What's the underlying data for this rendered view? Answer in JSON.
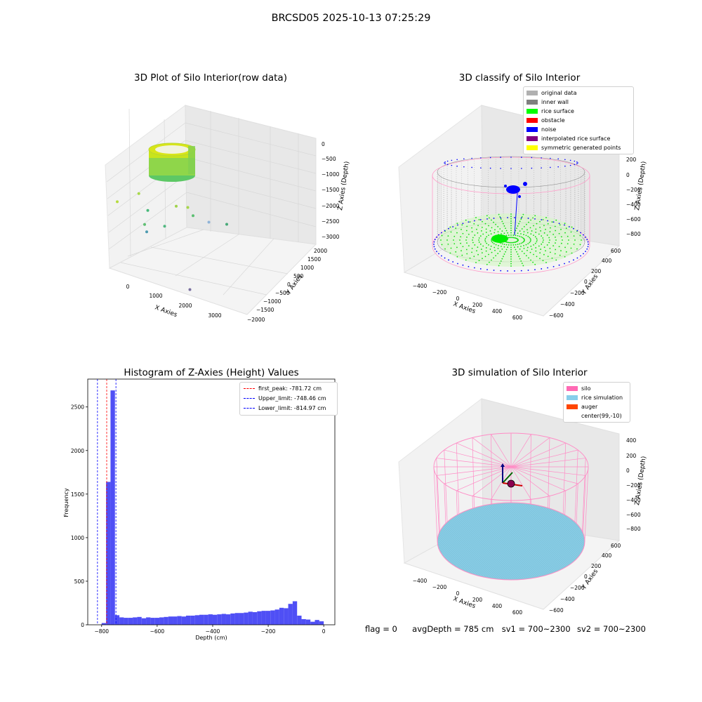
{
  "page": {
    "suptitle": "BRCSD05 2025-10-13 07:25:29"
  },
  "footer": {
    "flag": "flag = 0",
    "avgdepth": "avgDepth = 785 cm",
    "sv1": "sv1 = 700~2300",
    "sv2": "sv2 = 700~2300"
  },
  "chart_data": [
    {
      "type": "scatter",
      "title": "3D Plot of Silo Interior(row data)",
      "xlabel": "X Axies",
      "ylabel": "Y Axies",
      "zlabel": "Z Axies (Depth)",
      "xticks": [
        "0",
        "1000",
        "2000",
        "3000"
      ],
      "yticks": [
        "2000",
        "1500",
        "1000",
        "500",
        "0",
        "−500",
        "−1000",
        "−1500",
        "−2000"
      ],
      "zticks": [
        "0",
        "−500",
        "−1000",
        "−1500",
        "−2000",
        "−2500",
        "−3000"
      ],
      "points": [
        {
          "x": 150,
          "y": 200,
          "z": -1000,
          "c": "#a8d94a"
        },
        {
          "x": -600,
          "y": 300,
          "z": -1500,
          "c": "#b5db3e"
        },
        {
          "x": 500,
          "y": 100,
          "z": -1400,
          "c": "#47b97a"
        },
        {
          "x": 600,
          "y": -200,
          "z": -1700,
          "c": "#5fbf72"
        },
        {
          "x": 800,
          "y": -400,
          "z": -1800,
          "c": "#4d9bb0"
        },
        {
          "x": 1200,
          "y": 400,
          "z": -1200,
          "c": "#9fd34a"
        },
        {
          "x": 1500,
          "y": 500,
          "z": -1200,
          "c": "#a6d64a"
        },
        {
          "x": 1800,
          "y": 300,
          "z": -1300,
          "c": "#5cbf72"
        },
        {
          "x": 1100,
          "y": 0,
          "z": -1700,
          "c": "#50b780"
        },
        {
          "x": 2500,
          "y": 0,
          "z": -1200,
          "c": "#8fb3d8"
        },
        {
          "x": 3200,
          "y": -200,
          "z": -1000,
          "c": "#48a978"
        },
        {
          "x": 2700,
          "y": -1200,
          "z": -2800,
          "c": "#7a6fa0"
        }
      ]
    },
    {
      "type": "scatter",
      "title": "3D classify of Silo Interior",
      "xlabel": "X Axies",
      "ylabel": "Y Axies",
      "zlabel": "Z Axies (Depth)",
      "xticks": [
        "−400",
        "−200",
        "0",
        "200",
        "400",
        "600"
      ],
      "yticks": [
        "600",
        "400",
        "200",
        "0",
        "−200",
        "−400",
        "−600"
      ],
      "zticks": [
        "200",
        "0",
        "−200",
        "−400",
        "−600",
        "−800"
      ],
      "legend": [
        {
          "label": "original data",
          "color": "#b0b0b0"
        },
        {
          "label": "inner wall",
          "color": "#808080"
        },
        {
          "label": "rice surface",
          "color": "#00ff00"
        },
        {
          "label": "obstacle",
          "color": "#ff0000"
        },
        {
          "label": "noise",
          "color": "#0000ff"
        },
        {
          "label": "interpolated rice surface",
          "color": "#800080"
        },
        {
          "label": "symmetric generated points",
          "color": "#ffff00"
        }
      ]
    },
    {
      "type": "bar",
      "title": "Histogram of Z-Axies (Height) Values",
      "xlabel": "Depth (cm)",
      "ylabel": "Frequency",
      "xlim": [
        -850,
        40
      ],
      "ylim": [
        0,
        2820
      ],
      "xticks": [
        -800,
        -600,
        -400,
        -200,
        0
      ],
      "yticks": [
        0,
        500,
        1000,
        1500,
        2000,
        2500
      ],
      "bin_width": 16,
      "bins_start": [
        -800,
        -784,
        -768,
        -752,
        -736,
        -720,
        -704,
        -688,
        -672,
        -656,
        -640,
        -624,
        -608,
        -592,
        -576,
        -560,
        -544,
        -528,
        -512,
        -496,
        -480,
        -464,
        -448,
        -432,
        -416,
        -400,
        -384,
        -368,
        -352,
        -336,
        -320,
        -304,
        -288,
        -272,
        -256,
        -240,
        -224,
        -208,
        -192,
        -176,
        -160,
        -144,
        -128,
        -112,
        -96,
        -80,
        -64,
        -48,
        -32,
        -16
      ],
      "values": [
        20,
        1640,
        2690,
        110,
        85,
        80,
        80,
        85,
        90,
        75,
        85,
        80,
        80,
        85,
        90,
        95,
        95,
        100,
        95,
        105,
        105,
        110,
        115,
        115,
        120,
        115,
        120,
        125,
        120,
        130,
        135,
        135,
        140,
        150,
        145,
        155,
        160,
        160,
        165,
        175,
        195,
        190,
        240,
        270,
        105,
        65,
        60,
        35,
        55,
        40
      ],
      "vlines": [
        {
          "label": "first_peak: -781.72 cm",
          "x": -781.72,
          "color": "#ff0000"
        },
        {
          "label": "Upper_limit: -748.46 cm",
          "x": -748.46,
          "color": "#0000ff"
        },
        {
          "label": "Lower_limit: -814.97 cm",
          "x": -814.97,
          "color": "#0000ff"
        }
      ],
      "bar_color": "#4f4ff5"
    },
    {
      "type": "scatter",
      "title": "3D simulation of Silo Interior",
      "xlabel": "X Axies",
      "ylabel": "Y Axies",
      "zlabel": "Z Axies (Depth)",
      "xticks": [
        "−400",
        "−200",
        "0",
        "200",
        "400",
        "600"
      ],
      "yticks": [
        "600",
        "400",
        "200",
        "0",
        "−200",
        "−400",
        "−600"
      ],
      "zticks": [
        "400",
        "200",
        "0",
        "−200",
        "−400",
        "−600",
        "−800"
      ],
      "legend": [
        {
          "label": "silo",
          "color": "#ff69b4"
        },
        {
          "label": "rice simulation",
          "color": "#87ceeb"
        },
        {
          "label": "auger",
          "color": "#ff4500"
        },
        {
          "label": "center(99,-10)",
          "color": ""
        }
      ]
    }
  ]
}
